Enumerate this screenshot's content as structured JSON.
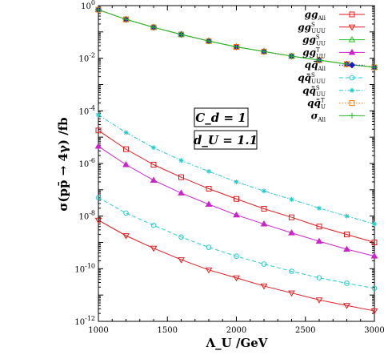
{
  "chart_data": {
    "type": "line",
    "xlabel": "Λ_U /GeV",
    "ylabel": "σ(pp̄ → 4γ) /fb",
    "xlim": [
      1000,
      3000
    ],
    "ylim_log10": [
      -12,
      0
    ],
    "yscale": "log",
    "x_ticks": [
      "1000",
      "1500",
      "2000",
      "2500",
      "3000"
    ],
    "y_ticks": [
      {
        "base": "10",
        "exp": "0"
      },
      {
        "base": "10",
        "exp": "-2"
      },
      {
        "base": "10",
        "exp": "-4"
      },
      {
        "base": "10",
        "exp": "-6"
      },
      {
        "base": "10",
        "exp": "-8"
      },
      {
        "base": "10",
        "exp": "-10"
      },
      {
        "base": "10",
        "exp": "-12"
      }
    ],
    "x": [
      1000,
      1200,
      1400,
      1600,
      1800,
      2000,
      2200,
      2400,
      2600,
      2800,
      3000
    ],
    "series": [
      {
        "name": "gg_All",
        "color": "#e41a1c",
        "marker": "square",
        "dash": "solid",
        "values": [
          1.8e-05,
          3.5e-06,
          9e-07,
          3e-07,
          1.1e-07,
          4.5e-08,
          1.9e-08,
          9e-09,
          4e-09,
          2e-09,
          1e-09
        ]
      },
      {
        "name": "gg_UUU^S",
        "color": "#e41a1c",
        "marker": "triangle-down",
        "dash": "solid",
        "values": [
          7e-09,
          1.8e-09,
          6e-10,
          2.2e-10,
          9e-11,
          4.5e-11,
          2.2e-11,
          1.2e-11,
          6.5e-12,
          4e-12,
          2.5e-12
        ]
      },
      {
        "name": "gg_UU^S",
        "color": "#22bb22",
        "marker": "triangle-up",
        "dash": "solid",
        "values": [
          0.7,
          0.3,
          0.15,
          0.08,
          0.045,
          0.027,
          0.018,
          0.012,
          0.0085,
          0.006,
          0.0045
        ]
      },
      {
        "name": "gg_UU^T",
        "color": "#cc22cc",
        "marker": "triangle-up-filled",
        "dash": "solid",
        "values": [
          4.5e-06,
          9e-07,
          2.3e-07,
          7.5e-08,
          2.8e-08,
          1.1e-08,
          5e-09,
          2.3e-09,
          1.1e-09,
          5.5e-10,
          3e-10
        ]
      },
      {
        "name": "qq̄_All",
        "color": "#1a1acc",
        "marker": "diamond",
        "dash": "dotted",
        "values": [
          0.7,
          0.3,
          0.15,
          0.08,
          0.045,
          0.027,
          0.018,
          0.012,
          0.0085,
          0.006,
          0.0045
        ]
      },
      {
        "name": "qq̄_UUU^S",
        "color": "#22cccc",
        "marker": "circle",
        "dash": "dashed",
        "values": [
          5e-08,
          1.3e-08,
          4.5e-09,
          1.6e-09,
          6.5e-10,
          3e-10,
          1.5e-10,
          8e-11,
          4.5e-11,
          2.8e-11,
          1.8e-11
        ]
      },
      {
        "name": "qq̄_UU^S",
        "color": "#22cccc",
        "marker": "star",
        "dash": "dashdot",
        "values": [
          7e-05,
          1.5e-05,
          4e-06,
          1.3e-06,
          5e-07,
          2e-07,
          9e-08,
          4.3e-08,
          2e-08,
          1e-08,
          5e-09
        ]
      },
      {
        "name": "qq̄_U^T",
        "color": "#ee7700",
        "marker": "square",
        "dash": "dotted",
        "values": [
          0.7,
          0.3,
          0.15,
          0.08,
          0.045,
          0.027,
          0.018,
          0.012,
          0.0085,
          0.006,
          0.0045
        ]
      },
      {
        "name": "σ_All",
        "color": "#22bb22",
        "marker": "plus",
        "dash": "solid",
        "values": [
          0.7,
          0.3,
          0.15,
          0.08,
          0.045,
          0.027,
          0.018,
          0.012,
          0.0085,
          0.006,
          0.0045
        ]
      }
    ],
    "legend": {
      "placement": "top-right",
      "entries": [
        {
          "main": "gg",
          "sup": "",
          "sub": "All"
        },
        {
          "main": "gg",
          "sup": "S",
          "sub": "UUU"
        },
        {
          "main": "gg",
          "sup": "S",
          "sub": "UU"
        },
        {
          "main": "gg",
          "sup": "T",
          "sub": "UU"
        },
        {
          "main": "qq̄",
          "sup": "",
          "sub": "All"
        },
        {
          "main": "qq̄",
          "sup": "S",
          "sub": "UUU"
        },
        {
          "main": "qq̄",
          "sup": "S",
          "sub": "UU"
        },
        {
          "main": "qq̄",
          "sup": "T",
          "sub": "U"
        },
        {
          "main": "σ",
          "sup": "",
          "sub": "All"
        }
      ]
    },
    "annotations": [
      "C_d = 1",
      "d_U = 1.1"
    ]
  }
}
